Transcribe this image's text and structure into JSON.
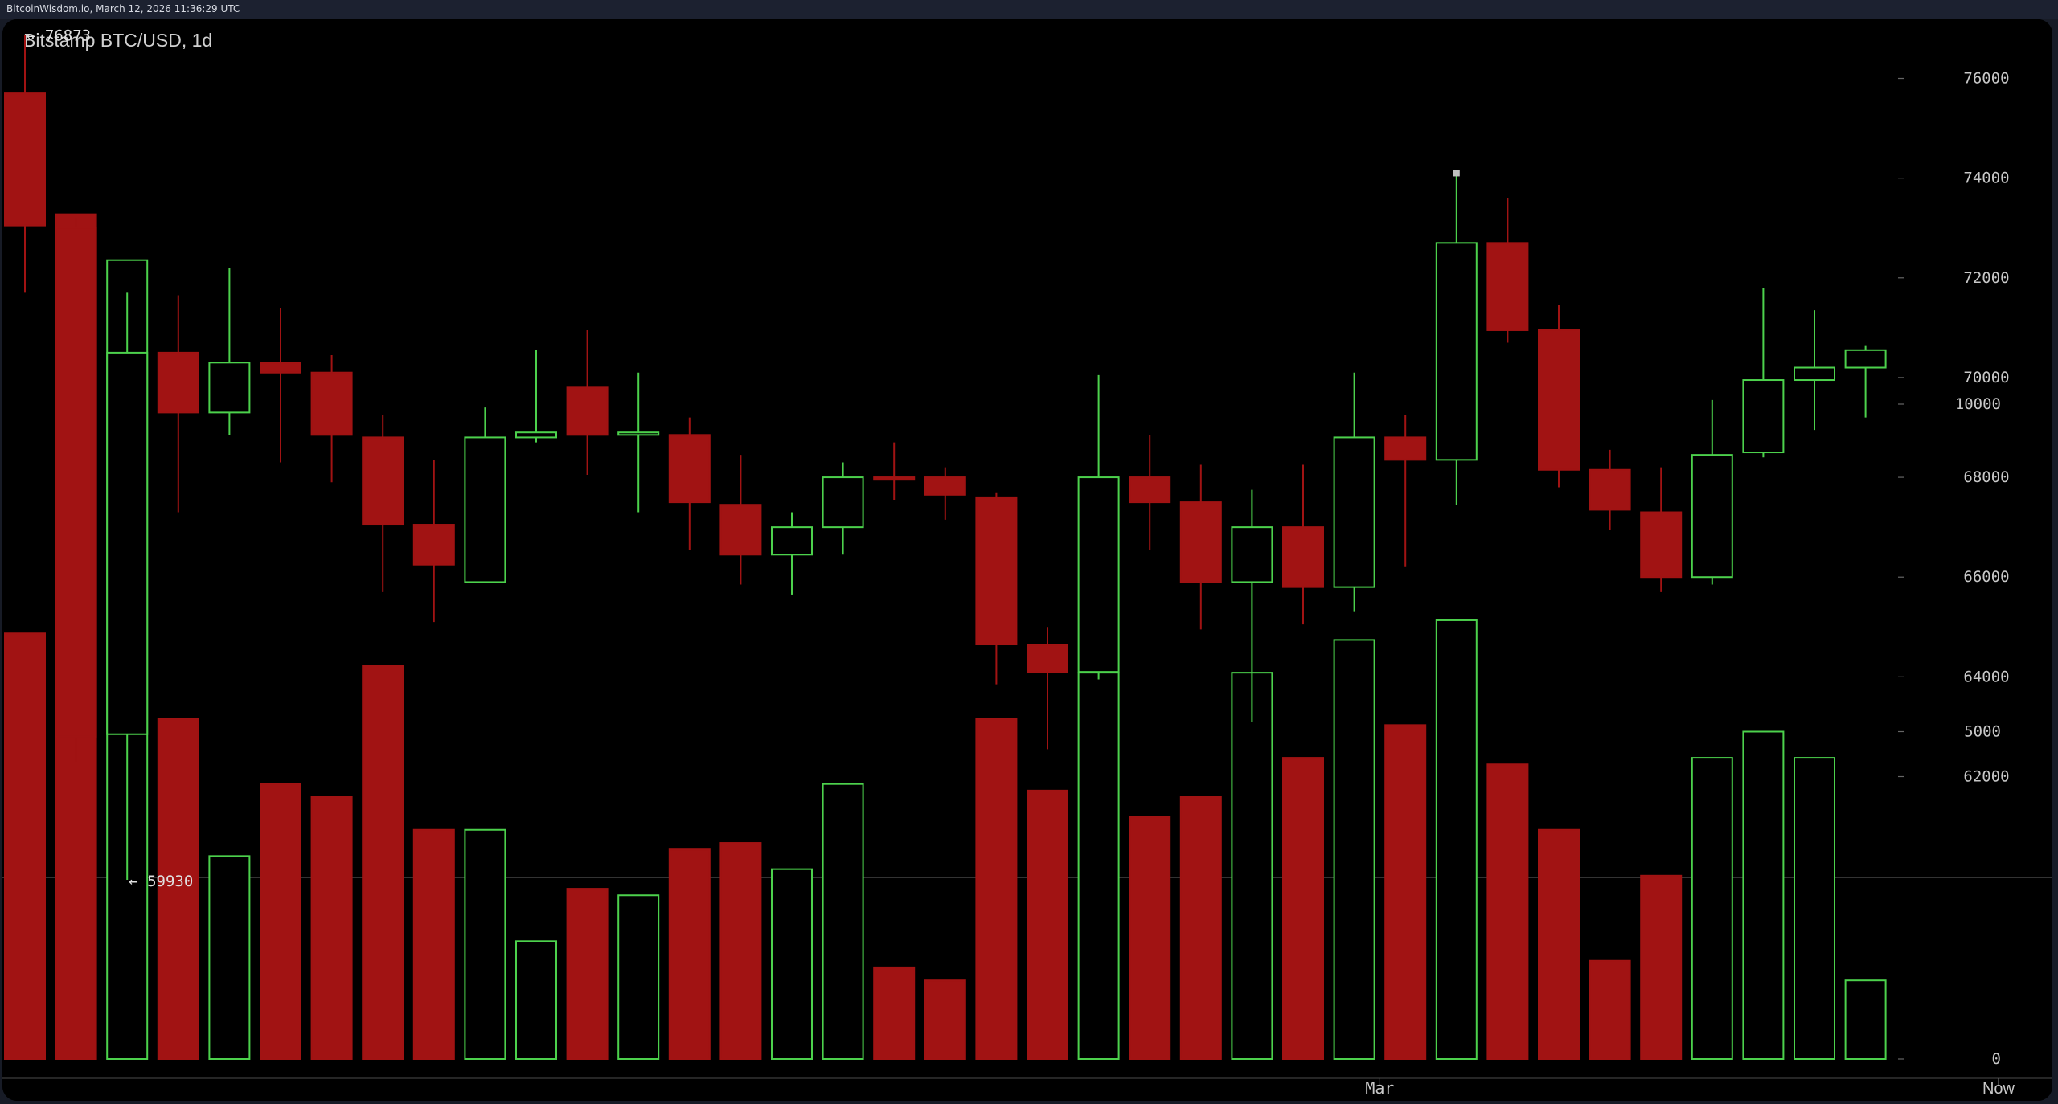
{
  "header": {
    "timestamp_line": "BitcoinWisdom.io, March 12, 2026 11:36:29 UTC"
  },
  "chart_data": {
    "type": "candlestick",
    "title": "Bitstamp BTC/USD, 1d",
    "price_axis": {
      "min": 60100,
      "max": 77600,
      "ticks": [
        "76000",
        "74000",
        "72000",
        "70000",
        "68000",
        "66000",
        "64000",
        "62000"
      ]
    },
    "volume_axis": {
      "max": 13400,
      "ticks": [
        "10000",
        "5000",
        "0"
      ]
    },
    "x_ticks": [
      {
        "label": "Mar",
        "index": 26.5
      },
      {
        "label": "Now",
        "index": 38.6
      }
    ],
    "high_label": "← 76873",
    "low_label": "← 59930",
    "colors": {
      "up": "#4cd14c",
      "down": "#a11313",
      "grid": "#3a3a3a",
      "text": "#c8c8c8",
      "background": "#000000"
    },
    "candles": [
      {
        "o": 75700,
        "h": 76873,
        "l": 71700,
        "c": 73050,
        "v": 6500
      },
      {
        "o": 73000,
        "h": 73200,
        "l": 62300,
        "c": 62800,
        "v": 12900
      },
      {
        "o": 62850,
        "h": 71700,
        "l": 59930,
        "c": 70500,
        "v": 12200
      },
      {
        "o": 70500,
        "h": 71650,
        "l": 67300,
        "c": 69300,
        "v": 5200
      },
      {
        "o": 69300,
        "h": 72200,
        "l": 68850,
        "c": 70300,
        "v": 3100
      },
      {
        "o": 70300,
        "h": 71400,
        "l": 68300,
        "c": 70100,
        "v": 4200
      },
      {
        "o": 70100,
        "h": 70450,
        "l": 67900,
        "c": 68850,
        "v": 4000
      },
      {
        "o": 68800,
        "h": 69250,
        "l": 65700,
        "c": 67050,
        "v": 6000
      },
      {
        "o": 67050,
        "h": 68350,
        "l": 65100,
        "c": 66250,
        "v": 3500
      },
      {
        "o": 65900,
        "h": 69400,
        "l": 65900,
        "c": 68800,
        "v": 3500
      },
      {
        "o": 68800,
        "h": 70550,
        "l": 68700,
        "c": 68900,
        "v": 1800
      },
      {
        "o": 69800,
        "h": 70950,
        "l": 68050,
        "c": 68850,
        "v": 2600
      },
      {
        "o": 68850,
        "h": 70100,
        "l": 67300,
        "c": 68900,
        "v": 2500
      },
      {
        "o": 68850,
        "h": 69200,
        "l": 66550,
        "c": 67500,
        "v": 3200
      },
      {
        "o": 67450,
        "h": 68450,
        "l": 65850,
        "c": 66450,
        "v": 3300
      },
      {
        "o": 66450,
        "h": 67300,
        "l": 65650,
        "c": 67000,
        "v": 2900
      },
      {
        "o": 67000,
        "h": 68300,
        "l": 66450,
        "c": 68000,
        "v": 4200
      },
      {
        "o": 68000,
        "h": 68700,
        "l": 67550,
        "c": 67950,
        "v": 1400
      },
      {
        "o": 68000,
        "h": 68200,
        "l": 67150,
        "c": 67650,
        "v": 1200
      },
      {
        "o": 67600,
        "h": 67700,
        "l": 63850,
        "c": 64650,
        "v": 5200
      },
      {
        "o": 64650,
        "h": 65000,
        "l": 62550,
        "c": 64100,
        "v": 4100
      },
      {
        "o": 64100,
        "h": 70050,
        "l": 63950,
        "c": 68000,
        "v": 5900
      },
      {
        "o": 68000,
        "h": 68850,
        "l": 66550,
        "c": 67500,
        "v": 3700
      },
      {
        "o": 67500,
        "h": 68250,
        "l": 64950,
        "c": 65900,
        "v": 4000
      },
      {
        "o": 65900,
        "h": 67750,
        "l": 63100,
        "c": 67000,
        "v": 5900
      },
      {
        "o": 67000,
        "h": 68250,
        "l": 65050,
        "c": 65800,
        "v": 4600
      },
      {
        "o": 65800,
        "h": 70100,
        "l": 65300,
        "c": 68800,
        "v": 6400
      },
      {
        "o": 68800,
        "h": 69250,
        "l": 66200,
        "c": 68350,
        "v": 5100
      },
      {
        "o": 68350,
        "h": 74100,
        "l": 67450,
        "c": 72700,
        "v": 6700
      },
      {
        "o": 72700,
        "h": 73600,
        "l": 70700,
        "c": 70950,
        "v": 4500
      },
      {
        "o": 70950,
        "h": 71450,
        "l": 67800,
        "c": 68150,
        "v": 3500
      },
      {
        "o": 68150,
        "h": 68550,
        "l": 66950,
        "c": 67350,
        "v": 1500
      },
      {
        "o": 67300,
        "h": 68200,
        "l": 65700,
        "c": 66000,
        "v": 2800
      },
      {
        "o": 66000,
        "h": 69550,
        "l": 65850,
        "c": 68450,
        "v": 4600
      },
      {
        "o": 68500,
        "h": 71800,
        "l": 68400,
        "c": 69950,
        "v": 5000
      },
      {
        "o": 69950,
        "h": 71350,
        "l": 68950,
        "c": 70200,
        "v": 4600
      },
      {
        "o": 70200,
        "h": 70650,
        "l": 69200,
        "c": 70550,
        "v": 1200
      }
    ]
  }
}
